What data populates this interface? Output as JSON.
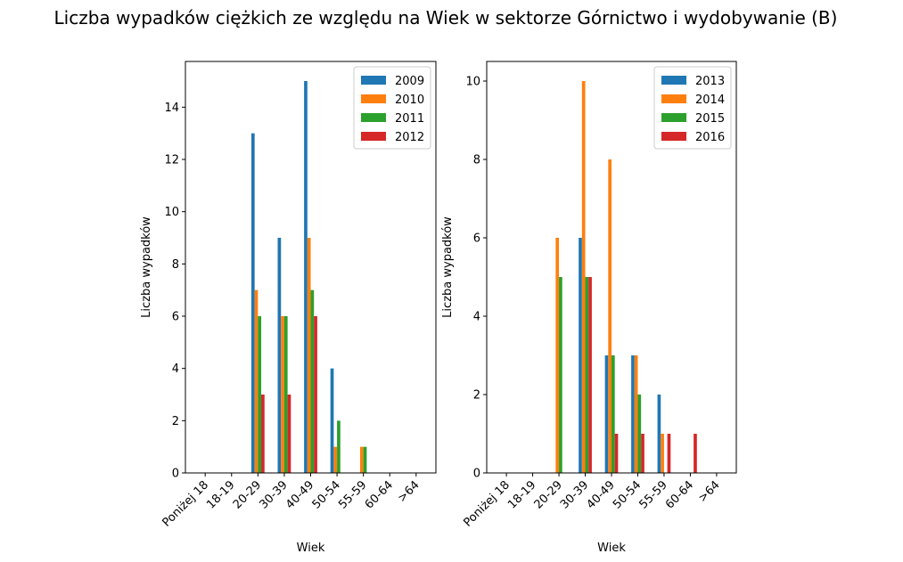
{
  "figure": {
    "title": "Liczba wypadków ciężkich ze względu na Wiek w sektorze Górnictwo i wydobywanie (B)"
  },
  "colors": [
    "#1f77b4",
    "#ff7f0e",
    "#2ca02c",
    "#d62728"
  ],
  "chart_data": [
    {
      "type": "bar",
      "title": "",
      "xlabel": "Wiek",
      "ylabel": "Liczba wypadków",
      "categories": [
        "Poniżej 18",
        "18-19",
        "20-29",
        "30-39",
        "40-49",
        "50-54",
        "55-59",
        "60-64",
        ">64"
      ],
      "ylim": [
        0,
        15.75
      ],
      "yticks": [
        0,
        2,
        4,
        6,
        8,
        10,
        12,
        14
      ],
      "legend": "top-right",
      "series": [
        {
          "name": "2009",
          "values": [
            0,
            0,
            13,
            9,
            15,
            4,
            0,
            0,
            0
          ]
        },
        {
          "name": "2010",
          "values": [
            0,
            0,
            7,
            6,
            9,
            1,
            1,
            0,
            0
          ]
        },
        {
          "name": "2011",
          "values": [
            0,
            0,
            6,
            6,
            7,
            2,
            1,
            0,
            0
          ]
        },
        {
          "name": "2012",
          "values": [
            0,
            0,
            3,
            3,
            6,
            0,
            0,
            0,
            0
          ]
        }
      ]
    },
    {
      "type": "bar",
      "title": "",
      "xlabel": "Wiek",
      "ylabel": "Liczba wypadków",
      "categories": [
        "Poniżej 18",
        "18-19",
        "20-29",
        "30-39",
        "40-49",
        "50-54",
        "55-59",
        "60-64",
        ">64"
      ],
      "ylim": [
        0,
        10.5
      ],
      "yticks": [
        0,
        2,
        4,
        6,
        8,
        10
      ],
      "legend": "top-right",
      "series": [
        {
          "name": "2013",
          "values": [
            0,
            0,
            0,
            6,
            3,
            3,
            2,
            0,
            0
          ]
        },
        {
          "name": "2014",
          "values": [
            0,
            0,
            6,
            10,
            8,
            3,
            1,
            0,
            0
          ]
        },
        {
          "name": "2015",
          "values": [
            0,
            0,
            5,
            5,
            3,
            2,
            0,
            0,
            0
          ]
        },
        {
          "name": "2016",
          "values": [
            0,
            0,
            0,
            5,
            1,
            1,
            1,
            1,
            0
          ]
        }
      ]
    }
  ]
}
